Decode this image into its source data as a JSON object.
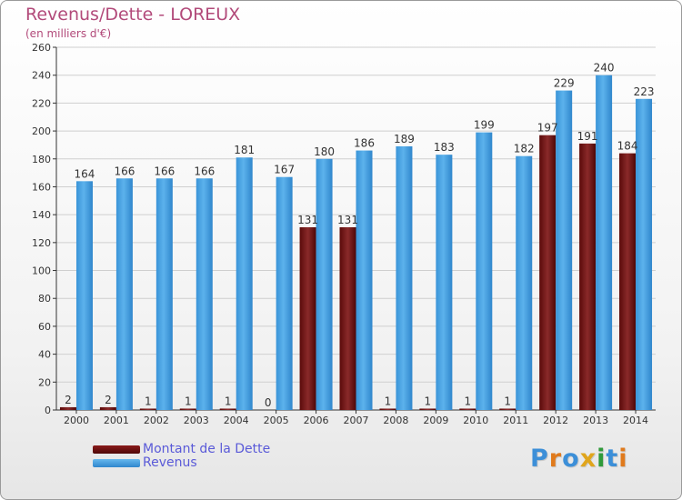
{
  "header": {
    "title": "Revenus/Dette - LOREUX",
    "subtitle": "(en milliers d'€)"
  },
  "colors": {
    "dette": "#6a0d0d",
    "revenus": "#3f9ee0",
    "axis": "#333333",
    "grid": "#cfcfcf",
    "title": "#b24a7a",
    "legend_text": "#5a5ad8"
  },
  "legend": {
    "dette_label": "Montant de la Dette",
    "revenus_label": "Revenus"
  },
  "logo": {
    "text": "Proxiti",
    "letters": [
      "P",
      "r",
      "o",
      "x",
      "i",
      "t",
      "i"
    ],
    "letter_colors": [
      "#3c8fd8",
      "#e07a1c",
      "#3c8fd8",
      "#e0a51c",
      "#2f9a3a",
      "#3c8fd8",
      "#e07a1c"
    ]
  },
  "chart_data": {
    "type": "bar",
    "title": "Revenus/Dette - LOREUX",
    "subtitle": "(en milliers d'€)",
    "xlabel": "",
    "ylabel": "",
    "ylim": [
      0,
      260
    ],
    "yticks": [
      0,
      20,
      40,
      60,
      80,
      100,
      120,
      140,
      160,
      180,
      200,
      220,
      240,
      260
    ],
    "grid": true,
    "legend_position": "bottom-left",
    "categories": [
      "2000",
      "2001",
      "2002",
      "2003",
      "2004",
      "2005",
      "2006",
      "2007",
      "2008",
      "2009",
      "2010",
      "2011",
      "2012",
      "2013",
      "2014"
    ],
    "series": [
      {
        "name": "Montant de la Dette",
        "color": "#6a0d0d",
        "values": [
          2,
          2,
          1,
          1,
          1,
          0,
          131,
          131,
          1,
          1,
          1,
          1,
          197,
          191,
          184
        ],
        "labels": [
          "2",
          "2",
          "1",
          "1",
          "1",
          "0",
          "131",
          "131",
          "1",
          "1",
          "1",
          "1",
          "197",
          "191",
          "184"
        ]
      },
      {
        "name": "Revenus",
        "color": "#3f9ee0",
        "values": [
          164,
          166,
          166,
          166,
          181,
          167,
          180,
          186,
          189,
          183,
          199,
          182,
          229,
          240,
          223
        ],
        "labels": [
          "164",
          "166",
          "166",
          "166",
          "181",
          "167",
          "180",
          "186",
          "189",
          "183",
          "199",
          "182",
          "229",
          "240",
          "223"
        ]
      }
    ]
  }
}
